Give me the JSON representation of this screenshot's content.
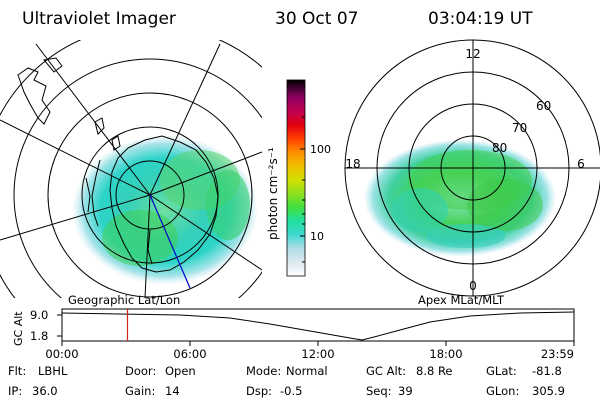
{
  "header": {
    "instrument": "Ultraviolet Imager",
    "date": "30 Oct 07",
    "time": "03:04:19 UT"
  },
  "colors": {
    "aurora_main": "#3ccf5a",
    "aurora_cyan": "#26d8d0",
    "aurora_light": "#c8ecf0",
    "timeline_marker": "#d02020",
    "orbit_line": "#0000cc"
  },
  "left_panel": {
    "caption": "Geographic Lat/Lon"
  },
  "right_panel": {
    "caption": "Apex MLat/MLT",
    "clock_labels": {
      "top": "12",
      "left": "18",
      "right": "6",
      "bottom": "0"
    },
    "lat_labels": [
      "60",
      "70",
      "80"
    ]
  },
  "colorbar": {
    "label": "photon cm⁻²s⁻¹",
    "ticks": [
      "100",
      "10"
    ],
    "scale": "log",
    "colors": [
      "#ffffff",
      "#dde8f0",
      "#b0dfe8",
      "#40d8d0",
      "#20e0a0",
      "#40e040",
      "#90e020",
      "#d0e000",
      "#f0c000",
      "#ff9000",
      "#ff4000",
      "#e00010",
      "#c00050",
      "#900060",
      "#400030",
      "#000000"
    ]
  },
  "timeline": {
    "axis_label": "GC Alt",
    "y_ticks": [
      "9.0",
      "1.8"
    ],
    "x_ticks": [
      "00:00",
      "06:00",
      "12:00",
      "18:00",
      "23:59"
    ],
    "marker_time_hours": 3.07
  },
  "status": {
    "flt_label": "Flt:",
    "flt_value": "LBHL",
    "door_label": "Door:",
    "door_value": "Open",
    "mode_label": "Mode:",
    "mode_value": "Normal",
    "gcalt_label": "GC Alt:",
    "gcalt_value": "8.8 Re",
    "glat_label": "GLat:",
    "glat_value": "-81.8",
    "ip_label": "IP:",
    "ip_value": "36.0",
    "gain_label": "Gain:",
    "gain_value": "14",
    "dsp_label": "Dsp:",
    "dsp_value": "-0.5",
    "seq_label": "Seq:",
    "seq_value": "39",
    "glon_label": "GLon:",
    "glon_value": "305.9"
  }
}
